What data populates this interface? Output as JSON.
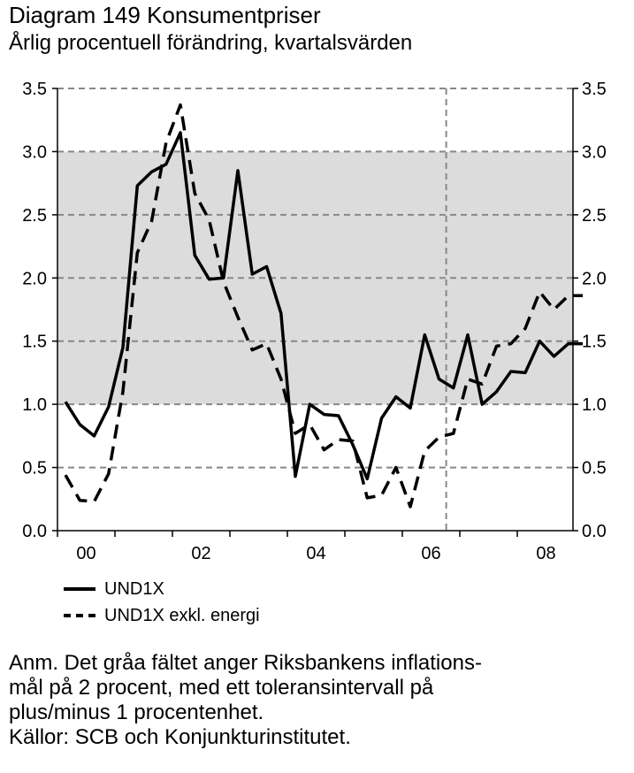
{
  "header": {
    "title": "Diagram 149 Konsumentpriser",
    "subtitle": "Årlig procentuell förändring, kvartalsvärden"
  },
  "chart_data": {
    "type": "line",
    "x_tick_labels": [
      "00",
      "02",
      "04",
      "06",
      "08"
    ],
    "y_ticks": [
      "0.0",
      "0.5",
      "1.0",
      "1.5",
      "2.0",
      "2.5",
      "3.0",
      "3.5"
    ],
    "ylim": [
      0,
      3.5
    ],
    "grid": true,
    "shaded_band": [
      1.0,
      3.0
    ],
    "forecast_start_label": "2006 Q4",
    "legend_position": "bottom-left",
    "x": [
      "2000 Q1",
      "2000 Q2",
      "2000 Q3",
      "2000 Q4",
      "2001 Q1",
      "2001 Q2",
      "2001 Q3",
      "2001 Q4",
      "2002 Q1",
      "2002 Q2",
      "2002 Q3",
      "2002 Q4",
      "2003 Q1",
      "2003 Q2",
      "2003 Q3",
      "2003 Q4",
      "2004 Q1",
      "2004 Q2",
      "2004 Q3",
      "2004 Q4",
      "2005 Q1",
      "2005 Q2",
      "2005 Q3",
      "2005 Q4",
      "2006 Q1",
      "2006 Q2",
      "2006 Q3",
      "2006 Q4",
      "2007 Q1",
      "2007 Q2",
      "2007 Q3",
      "2007 Q4",
      "2008 Q1",
      "2008 Q2",
      "2008 Q3",
      "2008 Q4",
      "2009 Q1"
    ],
    "series": [
      {
        "name": "UND1X",
        "style": "solid",
        "color": "#000000",
        "values": [
          1.02,
          0.84,
          0.75,
          0.98,
          1.45,
          2.73,
          2.84,
          2.9,
          3.15,
          2.18,
          1.99,
          2.0,
          2.85,
          2.03,
          2.09,
          1.72,
          0.43,
          1.0,
          0.92,
          0.91,
          0.68,
          0.41,
          0.89,
          1.06,
          0.97,
          1.55,
          1.2,
          1.13,
          1.55,
          1.0,
          1.1,
          1.26,
          1.25,
          1.5,
          1.38,
          1.48,
          1.48
        ]
      },
      {
        "name": "UND1X exkl. energi",
        "style": "dashed",
        "color": "#000000",
        "values": [
          0.44,
          0.24,
          0.23,
          0.45,
          1.1,
          2.2,
          2.45,
          3.07,
          3.37,
          2.67,
          2.46,
          1.97,
          1.69,
          1.43,
          1.48,
          1.2,
          0.77,
          0.84,
          0.64,
          0.72,
          0.71,
          0.26,
          0.28,
          0.5,
          0.19,
          0.63,
          0.74,
          0.77,
          1.2,
          1.16,
          1.46,
          1.48,
          1.6,
          1.89,
          1.75,
          1.86,
          1.86
        ]
      }
    ]
  },
  "note": {
    "line1": "Anm. Det gråa fältet anger Riksbankens inflations-",
    "line2": "mål på 2 procent, med ett toleransintervall på",
    "line3": "plus/minus 1 procentenhet.",
    "line4": "Källor: SCB och Konjunkturinstitutet."
  },
  "colors": {
    "band": "#dcdcdc",
    "grid": "#888888",
    "line": "#000000"
  }
}
